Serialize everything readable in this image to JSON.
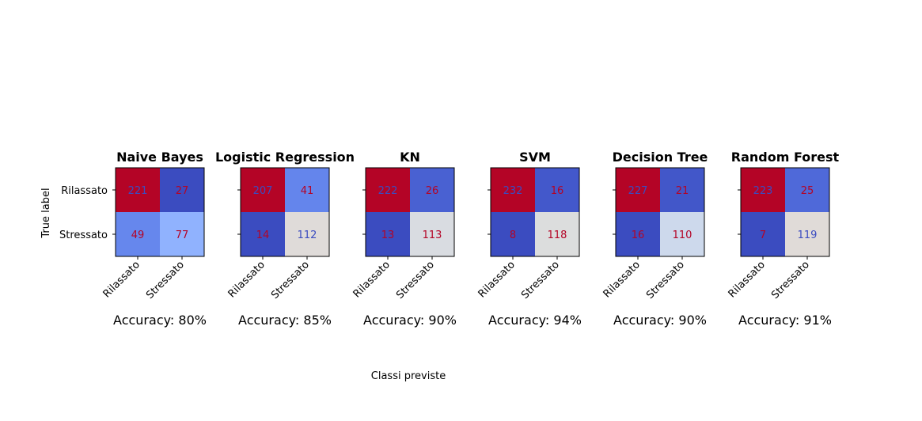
{
  "figure": {
    "ylabel": "True label",
    "xlabel": "Classi previste"
  },
  "chart_data": {
    "type": "heatmap",
    "labels": [
      "Rilassato",
      "Stressato"
    ],
    "ylabel": "True label",
    "xlabel": "Classi previste",
    "colormap": "coolwarm",
    "panels": [
      {
        "title": "Naive Bayes",
        "matrix": [
          [
            221,
            27
          ],
          [
            49,
            77
          ]
        ],
        "accuracy_label": "Accuracy: 80%",
        "cell_colors": [
          "#b40426",
          "#3b4cc0",
          "#6687ed",
          "#90b2fe"
        ],
        "text_colors": [
          "#3b4cc0",
          "#b40426",
          "#b40426",
          "#b40426"
        ]
      },
      {
        "title": "Logistic Regression",
        "matrix": [
          [
            207,
            41
          ],
          [
            14,
            112
          ]
        ],
        "accuracy_label": "Accuracy: 85%",
        "cell_colors": [
          "#b40426",
          "#6485ec",
          "#3b4cc0",
          "#dfdbd9"
        ],
        "text_colors": [
          "#3b4cc0",
          "#b40426",
          "#b40426",
          "#3b4cc0"
        ]
      },
      {
        "title": "KN",
        "matrix": [
          [
            222,
            26
          ],
          [
            13,
            113
          ]
        ],
        "accuracy_label": "Accuracy: 90%",
        "cell_colors": [
          "#b40426",
          "#4961d2",
          "#3b4cc0",
          "#d9dce1"
        ],
        "text_colors": [
          "#3b4cc0",
          "#b40426",
          "#b40426",
          "#b40426"
        ]
      },
      {
        "title": "SVM",
        "matrix": [
          [
            232,
            16
          ],
          [
            8,
            118
          ]
        ],
        "accuracy_label": "Accuracy: 94%",
        "cell_colors": [
          "#b40426",
          "#4358cb",
          "#3b4cc0",
          "#dcdddd"
        ],
        "text_colors": [
          "#3b4cc0",
          "#b40426",
          "#b40426",
          "#b40426"
        ]
      },
      {
        "title": "Decision Tree",
        "matrix": [
          [
            227,
            21
          ],
          [
            16,
            110
          ]
        ],
        "accuracy_label": "Accuracy: 90%",
        "cell_colors": [
          "#b40426",
          "#4257c9",
          "#3b4cc0",
          "#cdd9ec"
        ],
        "text_colors": [
          "#3b4cc0",
          "#b40426",
          "#b40426",
          "#b40426"
        ]
      },
      {
        "title": "Random Forest",
        "matrix": [
          [
            223,
            25
          ],
          [
            7,
            119
          ]
        ],
        "accuracy_label": "Accuracy: 91%",
        "cell_colors": [
          "#b40426",
          "#4f69d9",
          "#3b4cc0",
          "#e0dbd8"
        ],
        "text_colors": [
          "#3b4cc0",
          "#b40426",
          "#b40426",
          "#3b4cc0"
        ]
      }
    ]
  }
}
